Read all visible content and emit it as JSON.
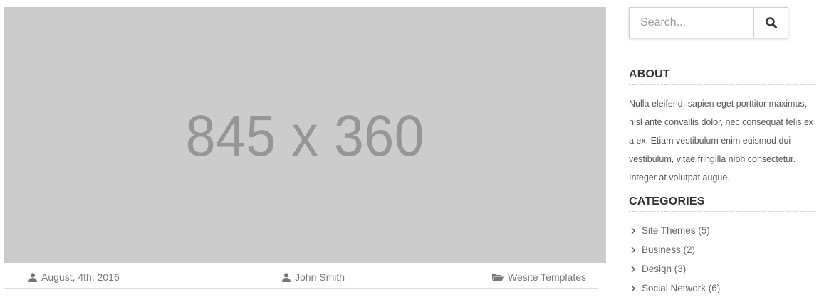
{
  "post": {
    "image_placeholder": "845 x 360",
    "date": "August, 4th, 2016",
    "author": "John Smith",
    "category": "Wesite Templates"
  },
  "sidebar": {
    "search": {
      "placeholder": "Search...",
      "button_icon": "search-icon"
    },
    "about": {
      "title": "ABOUT",
      "text": "Nulla eleifend, sapien eget porttitor maximus, nisl ante convallis dolor, nec consequat felis ex a ex. Etiam vestibulum enim euismod dui vestibulum, vitae fringilla nibh consectetur. Integer at volutpat augue."
    },
    "categories": {
      "title": "CATEGORIES",
      "items": [
        {
          "label": "Site Themes (5)"
        },
        {
          "label": "Business (2)"
        },
        {
          "label": "Design (3)"
        },
        {
          "label": "Social Network (6)"
        }
      ]
    }
  },
  "colors": {
    "placeholder_bg": "#cccccc",
    "placeholder_text": "#969696",
    "meta_icon": "#777777",
    "heading": "#333333"
  }
}
